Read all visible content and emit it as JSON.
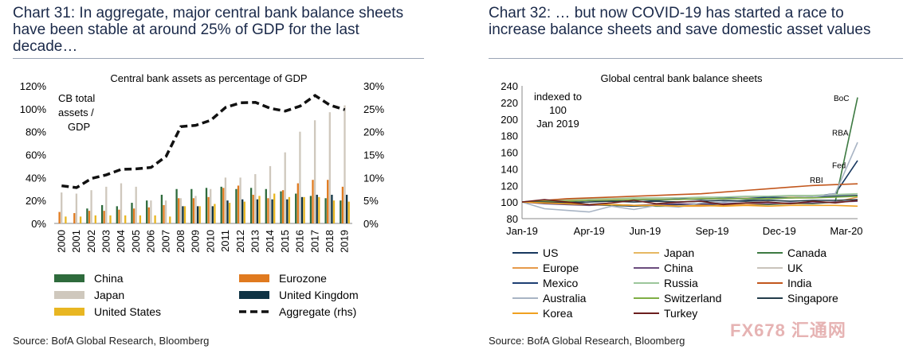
{
  "left": {
    "title": "Chart 31: In aggregate, major central bank balance sheets have been stable at around 25% of GDP for the last decade…",
    "source": "Source: BofA Global Research, Bloomberg"
  },
  "right": {
    "title": "Chart 32: … but now COVID-19 has started a race to increase balance sheets and save domestic asset values",
    "source": "Source: BofA Global Research, Bloomberg"
  },
  "watermark": "FX678 汇通网",
  "chart_data": [
    {
      "type": "bar",
      "title": "Central bank assets as percentage of GDP",
      "annotation": "CB total assets / GDP",
      "ylim": [
        0,
        120
      ],
      "y2lim": [
        0,
        30
      ],
      "yticks": [
        "0%",
        "20%",
        "40%",
        "60%",
        "80%",
        "100%",
        "120%"
      ],
      "y2ticks": [
        "0%",
        "5%",
        "10%",
        "15%",
        "20%",
        "25%",
        "30%"
      ],
      "categories": [
        "2000",
        "2001",
        "2002",
        "2003",
        "2004",
        "2005",
        "2006",
        "2007",
        "2008",
        "2009",
        "2010",
        "2011",
        "2012",
        "2013",
        "2014",
        "2015",
        "2016",
        "2017",
        "2018",
        "2019"
      ],
      "series": [
        {
          "name": "China",
          "color": "#2e6b3c",
          "values": [
            0,
            0,
            13,
            16,
            15,
            18,
            20,
            25,
            30,
            30,
            31,
            32,
            30,
            31,
            30,
            28,
            26,
            24,
            22,
            20
          ]
        },
        {
          "name": "Eurozone",
          "color": "#e07a1f",
          "values": [
            10,
            9,
            11,
            11,
            12,
            13,
            14,
            16,
            22,
            22,
            23,
            31,
            33,
            25,
            22,
            29,
            35,
            38,
            38,
            32
          ]
        },
        {
          "name": "Japan",
          "color": "#cfc8bd",
          "values": [
            27,
            26,
            29,
            32,
            35,
            32,
            20,
            20,
            22,
            24,
            30,
            40,
            40,
            43,
            50,
            62,
            80,
            90,
            97,
            103
          ]
        },
        {
          "name": "United Kingdom",
          "color": "#0f3344",
          "values": [
            0,
            0,
            0,
            0,
            0,
            0,
            0,
            0,
            15,
            15,
            15,
            20,
            21,
            21,
            21,
            21,
            23,
            25,
            25,
            25
          ]
        },
        {
          "name": "United States",
          "color": "#e8b622",
          "values": [
            6,
            6,
            7,
            7,
            7,
            7,
            7,
            6,
            15,
            15,
            17,
            18,
            19,
            24,
            26,
            23,
            23,
            23,
            20,
            19
          ]
        },
        {
          "name": "Aggregate (rhs)",
          "color": "#111111",
          "axis": "right",
          "values": [
            8.2,
            7.8,
            9.8,
            10.6,
            11.8,
            11.9,
            12.2,
            14.6,
            21.1,
            21.4,
            22.5,
            25.3,
            26.3,
            26.4,
            25.1,
            24.5,
            25.6,
            27.9,
            25.8,
            24.8
          ]
        }
      ]
    },
    {
      "type": "line",
      "title": "Global central bank balance sheets",
      "annotation": "indexed to 100 Jan 2019",
      "ylim": [
        80,
        240
      ],
      "yticks": [
        80,
        100,
        120,
        140,
        160,
        180,
        200,
        220,
        240
      ],
      "xticks": [
        "Jan-19",
        "Apr-19",
        "Jun-19",
        "Sep-19",
        "Dec-19",
        "Mar-20"
      ],
      "xrange": [
        0,
        15
      ],
      "labels": {
        "BoC": "BoC",
        "RBA": "RBA",
        "Fed": "Fed",
        "RBI": "RBI"
      },
      "series": [
        {
          "name": "US",
          "color": "#17375e",
          "values": [
            100,
            99,
            98,
            97,
            96,
            95,
            96,
            97,
            98,
            100,
            102,
            104,
            106,
            107,
            110,
            150
          ]
        },
        {
          "name": "Japan",
          "color": "#e6b862",
          "values": [
            100,
            101,
            102,
            102,
            103,
            103,
            104,
            104,
            104,
            105,
            105,
            105,
            106,
            106,
            107,
            108
          ]
        },
        {
          "name": "Canada",
          "color": "#3d7a42",
          "values": [
            100,
            99,
            98,
            97,
            96,
            96,
            95,
            95,
            96,
            96,
            97,
            97,
            98,
            98,
            100,
            226
          ]
        },
        {
          "name": "Europe",
          "color": "#e69a4a",
          "values": [
            100,
            99,
            98,
            97,
            97,
            96,
            96,
            95,
            95,
            96,
            97,
            98,
            98,
            99,
            100,
            106
          ]
        },
        {
          "name": "China",
          "color": "#6a4c7d",
          "values": [
            100,
            98,
            97,
            96,
            97,
            96,
            97,
            98,
            97,
            98,
            99,
            98,
            99,
            99,
            100,
            101
          ]
        },
        {
          "name": "UK",
          "color": "#c9c3bb",
          "values": [
            100,
            101,
            101,
            102,
            102,
            103,
            104,
            104,
            105,
            105,
            106,
            106,
            107,
            107,
            108,
            110
          ]
        },
        {
          "name": "Mexico",
          "color": "#1d3f73",
          "values": [
            100,
            101,
            100,
            102,
            101,
            103,
            102,
            104,
            103,
            105,
            104,
            106,
            105,
            106,
            107,
            108
          ]
        },
        {
          "name": "Russia",
          "color": "#9cc69a",
          "values": [
            100,
            102,
            103,
            104,
            104,
            105,
            105,
            105,
            106,
            106,
            107,
            107,
            108,
            108,
            109,
            110
          ]
        },
        {
          "name": "India",
          "color": "#c2561c",
          "values": [
            100,
            102,
            104,
            105,
            106,
            107,
            108,
            109,
            110,
            112,
            114,
            116,
            118,
            120,
            121,
            122
          ]
        },
        {
          "name": "Australia",
          "color": "#a8b4c4",
          "values": [
            100,
            92,
            90,
            88,
            95,
            91,
            96,
            94,
            99,
            100,
            101,
            103,
            105,
            106,
            110,
            172
          ]
        },
        {
          "name": "Switzerland",
          "color": "#7fae44",
          "values": [
            100,
            101,
            101,
            102,
            102,
            103,
            103,
            103,
            104,
            104,
            104,
            104,
            105,
            105,
            106,
            107
          ]
        },
        {
          "name": "Singapore",
          "color": "#233c4a",
          "values": [
            100,
            100,
            99,
            100,
            101,
            100,
            101,
            100,
            101,
            102,
            101,
            102,
            101,
            102,
            102,
            103
          ]
        },
        {
          "name": "Korea",
          "color": "#f0a020",
          "values": [
            100,
            99,
            98,
            97,
            97,
            96,
            96,
            95,
            96,
            95,
            96,
            95,
            96,
            96,
            96,
            95
          ]
        },
        {
          "name": "Turkey",
          "color": "#6b1e1e",
          "values": [
            100,
            103,
            100,
            97,
            99,
            102,
            98,
            100,
            101,
            97,
            99,
            100,
            98,
            101,
            99,
            102
          ]
        }
      ]
    }
  ]
}
